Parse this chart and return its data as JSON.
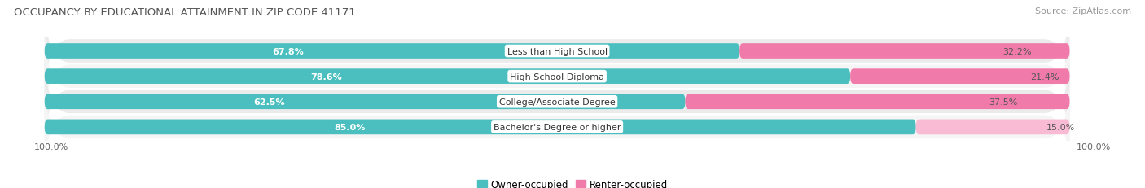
{
  "title": "OCCUPANCY BY EDUCATIONAL ATTAINMENT IN ZIP CODE 41171",
  "source": "Source: ZipAtlas.com",
  "categories": [
    "Less than High School",
    "High School Diploma",
    "College/Associate Degree",
    "Bachelor's Degree or higher"
  ],
  "owner_pct": [
    67.8,
    78.6,
    62.5,
    85.0
  ],
  "renter_pct": [
    32.2,
    21.4,
    37.5,
    15.0
  ],
  "owner_color": "#4BBFBF",
  "renter_color": "#F07AAA",
  "renter_color_light": "#F9BBD4",
  "row_bg_colors": [
    "#EBEBEB",
    "#F5F5F5",
    "#EBEBEB",
    "#F5F5F5"
  ],
  "title_fontsize": 9.5,
  "source_fontsize": 8,
  "legend_fontsize": 8.5,
  "tick_fontsize": 8,
  "bar_label_fontsize": 8,
  "category_fontsize": 8,
  "axis_label_left": "100.0%",
  "axis_label_right": "100.0%",
  "legend_owner": "Owner-occupied",
  "legend_renter": "Renter-occupied"
}
